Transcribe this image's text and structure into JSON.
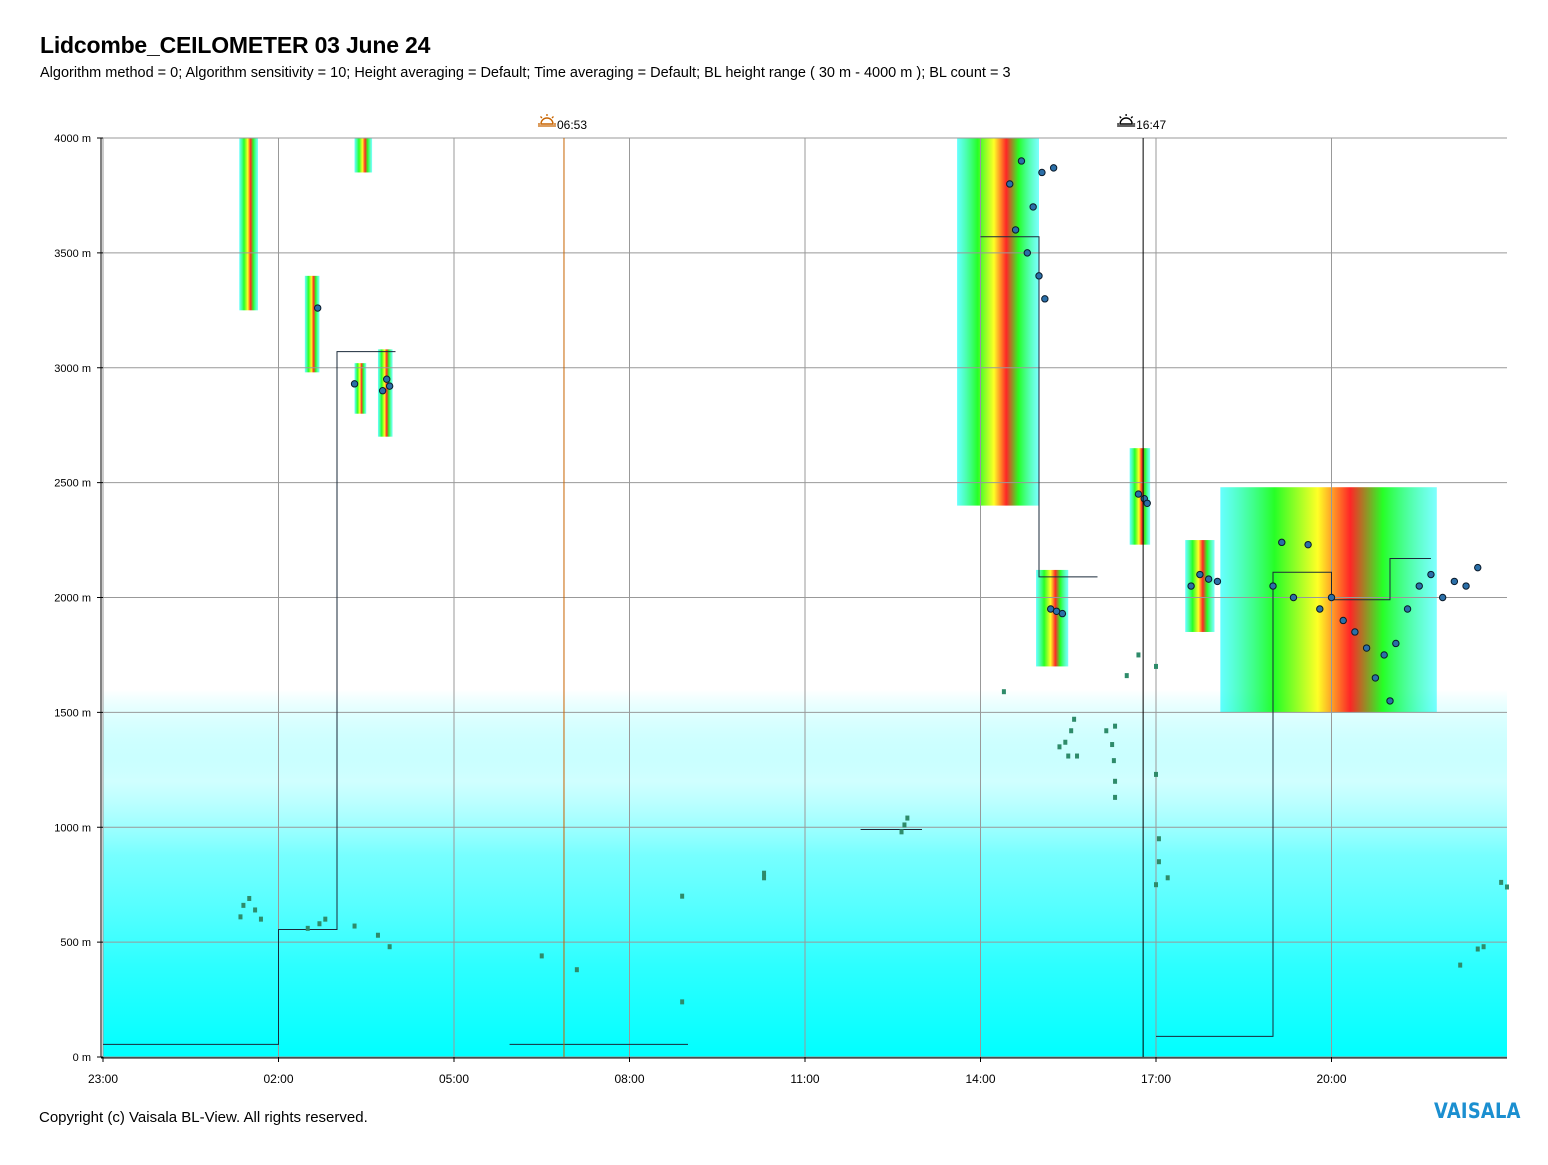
{
  "header": {
    "title": "Lidcombe_CEILOMETER 03 June 24",
    "subtitle": "Algorithm method = 0; Algorithm sensitivity = 10; Height averaging = Default; Time averaging = Default; BL height range ( 30 m - 4000 m ); BL count = 3"
  },
  "footer": {
    "copyright": "Copyright (c) Vaisala BL-View. All rights reserved.",
    "logo_text": "VAISALA"
  },
  "colors": {
    "background_aerosol": "#00ffff",
    "cloud_high": "#ff0000",
    "cloud_mid": "#00ff00",
    "cloud_low": "#ffff00",
    "bl_marker": "#2e8b6a",
    "sunrise_line": "#c86400",
    "sunset_line": "#000000",
    "logo": "#1b8fd0"
  },
  "chart_data": {
    "type": "heatmap",
    "title": "Lidcombe_CEILOMETER 03 June 24",
    "xlabel": "",
    "ylabel": "",
    "x_unit": "hours since 23:00 (previous day)",
    "xlim": [
      0,
      24
    ],
    "ylim": [
      0,
      4000
    ],
    "x_ticks": [
      {
        "value": 0,
        "label": "23:00"
      },
      {
        "value": 3,
        "label": "02:00"
      },
      {
        "value": 6,
        "label": "05:00"
      },
      {
        "value": 9,
        "label": "08:00"
      },
      {
        "value": 12,
        "label": "11:00"
      },
      {
        "value": 15,
        "label": "14:00"
      },
      {
        "value": 18,
        "label": "17:00"
      },
      {
        "value": 21,
        "label": "20:00"
      }
    ],
    "y_ticks": [
      {
        "value": 0,
        "label": "0 m"
      },
      {
        "value": 500,
        "label": "500 m"
      },
      {
        "value": 1000,
        "label": "1000 m"
      },
      {
        "value": 1500,
        "label": "1500 m"
      },
      {
        "value": 2000,
        "label": "2000 m"
      },
      {
        "value": 2500,
        "label": "2500 m"
      },
      {
        "value": 3000,
        "label": "3000 m"
      },
      {
        "value": 3500,
        "label": "3500 m"
      },
      {
        "value": 4000,
        "label": "4000 m"
      }
    ],
    "grid": true,
    "sun_events": [
      {
        "kind": "sunrise",
        "time": "06:53",
        "x": 7.88
      },
      {
        "kind": "sunset",
        "time": "16:47",
        "x": 17.78
      }
    ],
    "aerosol_layer_top_m": 1600,
    "cloud_regions": [
      {
        "x0": 2.33,
        "x1": 2.65,
        "y0": 3250,
        "y1": 4000
      },
      {
        "x0": 4.3,
        "x1": 4.6,
        "y0": 3850,
        "y1": 4000
      },
      {
        "x0": 3.45,
        "x1": 3.7,
        "y0": 2980,
        "y1": 3400
      },
      {
        "x0": 4.3,
        "x1": 4.5,
        "y0": 2800,
        "y1": 3020
      },
      {
        "x0": 4.7,
        "x1": 4.95,
        "y0": 2700,
        "y1": 3080
      },
      {
        "x0": 14.6,
        "x1": 16.0,
        "y0": 2400,
        "y1": 4000
      },
      {
        "x0": 15.95,
        "x1": 16.5,
        "y0": 1700,
        "y1": 2120
      },
      {
        "x0": 17.55,
        "x1": 17.9,
        "y0": 2230,
        "y1": 2650
      },
      {
        "x0": 18.5,
        "x1": 19.0,
        "y0": 1850,
        "y1": 2250
      },
      {
        "x0": 19.1,
        "x1": 22.8,
        "y0": 1500,
        "y1": 2480
      }
    ],
    "bl_height_steps": [
      {
        "x0": 0.0,
        "x1": 3.0,
        "y": 55
      },
      {
        "x0": 3.0,
        "x1": 4.0,
        "y": 555
      },
      {
        "x0": 4.0,
        "x1": 5.0,
        "y": 3070
      },
      {
        "x0": 6.95,
        "x1": 10.0,
        "y": 55
      },
      {
        "x0": 12.95,
        "x1": 14.0,
        "y": 990
      },
      {
        "x0": 15.0,
        "x1": 16.0,
        "y": 3570
      },
      {
        "x0": 16.0,
        "x1": 17.0,
        "y": 2090
      },
      {
        "x0": 18.0,
        "x1": 20.0,
        "y": 90
      },
      {
        "x0": 20.0,
        "x1": 21.0,
        "y": 2110
      },
      {
        "x0": 21.0,
        "x1": 22.0,
        "y": 1990
      },
      {
        "x0": 22.0,
        "x1": 22.7,
        "y": 2170
      }
    ],
    "cloud_base_points": [
      {
        "x": 3.67,
        "y": 3260
      },
      {
        "x": 4.3,
        "y": 2930
      },
      {
        "x": 4.78,
        "y": 2900
      },
      {
        "x": 4.85,
        "y": 2950
      },
      {
        "x": 4.9,
        "y": 2920
      },
      {
        "x": 15.5,
        "y": 3800
      },
      {
        "x": 15.6,
        "y": 3600
      },
      {
        "x": 15.7,
        "y": 3900
      },
      {
        "x": 15.8,
        "y": 3500
      },
      {
        "x": 15.9,
        "y": 3700
      },
      {
        "x": 16.0,
        "y": 3400
      },
      {
        "x": 16.05,
        "y": 3850
      },
      {
        "x": 16.1,
        "y": 3300
      },
      {
        "x": 16.25,
        "y": 3870
      },
      {
        "x": 16.2,
        "y": 1950
      },
      {
        "x": 16.3,
        "y": 1940
      },
      {
        "x": 16.4,
        "y": 1930
      },
      {
        "x": 17.7,
        "y": 2450
      },
      {
        "x": 17.8,
        "y": 2430
      },
      {
        "x": 17.85,
        "y": 2410
      },
      {
        "x": 18.6,
        "y": 2050
      },
      {
        "x": 18.75,
        "y": 2100
      },
      {
        "x": 18.9,
        "y": 2080
      },
      {
        "x": 19.05,
        "y": 2070
      },
      {
        "x": 20.0,
        "y": 2050
      },
      {
        "x": 20.15,
        "y": 2240
      },
      {
        "x": 20.35,
        "y": 2000
      },
      {
        "x": 20.6,
        "y": 2230
      },
      {
        "x": 20.8,
        "y": 1950
      },
      {
        "x": 21.0,
        "y": 2000
      },
      {
        "x": 21.2,
        "y": 1900
      },
      {
        "x": 21.4,
        "y": 1850
      },
      {
        "x": 21.6,
        "y": 1780
      },
      {
        "x": 21.75,
        "y": 1650
      },
      {
        "x": 21.9,
        "y": 1750
      },
      {
        "x": 22.0,
        "y": 1550
      },
      {
        "x": 22.1,
        "y": 1800
      },
      {
        "x": 22.3,
        "y": 1950
      },
      {
        "x": 22.5,
        "y": 2050
      },
      {
        "x": 22.7,
        "y": 2100
      },
      {
        "x": 22.9,
        "y": 2000
      },
      {
        "x": 23.1,
        "y": 2070
      },
      {
        "x": 23.3,
        "y": 2050
      },
      {
        "x": 23.5,
        "y": 2130
      }
    ],
    "layer_points": [
      {
        "x": 2.35,
        "y": 610
      },
      {
        "x": 2.4,
        "y": 660
      },
      {
        "x": 2.5,
        "y": 690
      },
      {
        "x": 2.6,
        "y": 640
      },
      {
        "x": 2.7,
        "y": 600
      },
      {
        "x": 3.5,
        "y": 560
      },
      {
        "x": 3.7,
        "y": 580
      },
      {
        "x": 3.8,
        "y": 600
      },
      {
        "x": 4.3,
        "y": 570
      },
      {
        "x": 4.7,
        "y": 530
      },
      {
        "x": 4.9,
        "y": 480
      },
      {
        "x": 7.5,
        "y": 440
      },
      {
        "x": 8.1,
        "y": 380
      },
      {
        "x": 9.9,
        "y": 700
      },
      {
        "x": 9.9,
        "y": 240
      },
      {
        "x": 11.3,
        "y": 780
      },
      {
        "x": 11.3,
        "y": 800
      },
      {
        "x": 13.65,
        "y": 980
      },
      {
        "x": 13.7,
        "y": 1010
      },
      {
        "x": 13.75,
        "y": 1040
      },
      {
        "x": 15.4,
        "y": 1590
      },
      {
        "x": 16.35,
        "y": 1350
      },
      {
        "x": 16.45,
        "y": 1370
      },
      {
        "x": 16.55,
        "y": 1420
      },
      {
        "x": 16.6,
        "y": 1470
      },
      {
        "x": 16.5,
        "y": 1310
      },
      {
        "x": 16.65,
        "y": 1310
      },
      {
        "x": 17.15,
        "y": 1420
      },
      {
        "x": 17.3,
        "y": 1440
      },
      {
        "x": 17.25,
        "y": 1360
      },
      {
        "x": 17.28,
        "y": 1290
      },
      {
        "x": 17.3,
        "y": 1200
      },
      {
        "x": 17.3,
        "y": 1130
      },
      {
        "x": 17.5,
        "y": 1660
      },
      {
        "x": 17.7,
        "y": 1750
      },
      {
        "x": 18.0,
        "y": 1700
      },
      {
        "x": 18.0,
        "y": 1230
      },
      {
        "x": 18.05,
        "y": 950
      },
      {
        "x": 18.05,
        "y": 850
      },
      {
        "x": 18.0,
        "y": 750
      },
      {
        "x": 18.2,
        "y": 780
      },
      {
        "x": 23.2,
        "y": 400
      },
      {
        "x": 23.5,
        "y": 470
      },
      {
        "x": 23.6,
        "y": 480
      },
      {
        "x": 23.9,
        "y": 760
      },
      {
        "x": 24.0,
        "y": 740
      }
    ]
  }
}
